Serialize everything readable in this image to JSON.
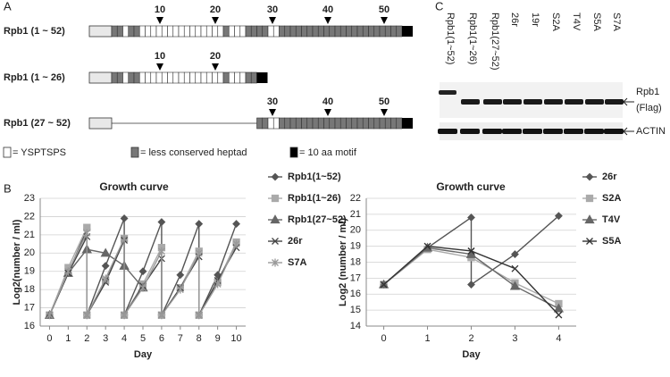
{
  "panel_a": {
    "label": "A",
    "rows": [
      {
        "name": "Rpb1 (1 ~ 52)",
        "marks": [
          "10",
          "20",
          "30",
          "40",
          "50"
        ]
      },
      {
        "name": "Rpb1 (1 ~ 26)",
        "marks": [
          "10",
          "20"
        ]
      },
      {
        "name": "Rpb1 (27 ~ 52)",
        "marks": [
          "30",
          "40",
          "50"
        ]
      }
    ],
    "legend": [
      "= YSPTSPS",
      "= less conserved heptad",
      "= 10 aa motif"
    ]
  },
  "panel_b": {
    "label": "B"
  },
  "panel_c": {
    "label": "C",
    "lanes": [
      "Rpb1(1~52)",
      "Rpb1(1~26)",
      "Rpb1(27~52)",
      "26r",
      "19r",
      "S2A",
      "T4V",
      "S5A",
      "S7A"
    ],
    "bands": [
      "Rpb1",
      "(Flag)",
      "ACTIN"
    ]
  },
  "chart_data": [
    {
      "type": "line",
      "title": "Growth curve",
      "x_label": "Day",
      "y_label": "Log2(number / ml)",
      "grid": true,
      "x": [
        0,
        1,
        2,
        2,
        3,
        4,
        4,
        5,
        6,
        6,
        7,
        8,
        8,
        9,
        10
      ],
      "xlim": [
        -0.5,
        10.5
      ],
      "xticks": [
        0,
        1,
        2,
        3,
        4,
        5,
        6,
        7,
        8,
        9,
        10
      ],
      "ylim": [
        16,
        23
      ],
      "yticks": [
        16,
        17,
        18,
        19,
        20,
        21,
        22,
        23
      ],
      "series": [
        {
          "name": "Rpb1(1~52)",
          "color": "#555555",
          "marker": "diamond",
          "values": [
            16.6,
            18.9,
            21.3,
            16.6,
            19.3,
            21.9,
            16.6,
            19.0,
            21.7,
            16.6,
            18.8,
            21.6,
            16.6,
            18.8,
            21.6
          ]
        },
        {
          "name": "Rpb1(1~26)",
          "color": "#aaaaaa",
          "marker": "square",
          "values": [
            16.6,
            19.2,
            21.4,
            16.6,
            18.5,
            20.8,
            16.6,
            18.3,
            20.3,
            16.6,
            18.1,
            20.1,
            16.6,
            18.4,
            20.6
          ]
        },
        {
          "name": "Rpb1(27~52)",
          "color": "#666666",
          "marker": "triangle",
          "values": [
            16.6,
            18.9,
            20.2,
            20.2,
            20.0,
            19.3,
            19.3,
            18.1,
            null,
            null,
            null,
            null,
            null,
            null,
            null
          ]
        },
        {
          "name": "26r",
          "color": "#444444",
          "marker": "x",
          "values": [
            16.6,
            18.9,
            20.9,
            16.6,
            18.4,
            20.7,
            16.6,
            18.2,
            19.7,
            16.6,
            18.1,
            19.8,
            16.6,
            18.5,
            20.3
          ]
        },
        {
          "name": "S7A",
          "color": "#999999",
          "marker": "star",
          "values": [
            16.6,
            19.0,
            21.1,
            16.6,
            18.6,
            20.8,
            16.6,
            18.1,
            20.1,
            16.6,
            18.0,
            20.0,
            16.6,
            18.3,
            20.5
          ]
        }
      ]
    },
    {
      "type": "line",
      "title": "Growth curve",
      "x_label": "Day",
      "y_label": "Log2 (number / ml)",
      "grid": true,
      "x": [
        0,
        1,
        2,
        2,
        3,
        4
      ],
      "xlim": [
        -0.4,
        4.4
      ],
      "xticks": [
        0,
        1,
        2,
        3,
        4
      ],
      "ylim": [
        14,
        22
      ],
      "yticks": [
        14,
        15,
        16,
        17,
        18,
        19,
        20,
        21,
        22
      ],
      "series": [
        {
          "name": "26r",
          "color": "#555555",
          "marker": "diamond",
          "values": [
            16.6,
            18.9,
            20.8,
            16.6,
            18.5,
            20.9
          ]
        },
        {
          "name": "S2A",
          "color": "#aaaaaa",
          "marker": "square",
          "values": [
            16.6,
            18.8,
            18.3,
            18.3,
            16.7,
            15.4
          ]
        },
        {
          "name": "T4V",
          "color": "#666666",
          "marker": "triangle",
          "values": [
            16.6,
            18.9,
            18.5,
            18.5,
            16.5,
            15.1
          ]
        },
        {
          "name": "S5A",
          "color": "#333333",
          "marker": "x",
          "values": [
            16.6,
            19.0,
            18.7,
            18.7,
            17.6,
            14.7
          ]
        }
      ]
    }
  ]
}
